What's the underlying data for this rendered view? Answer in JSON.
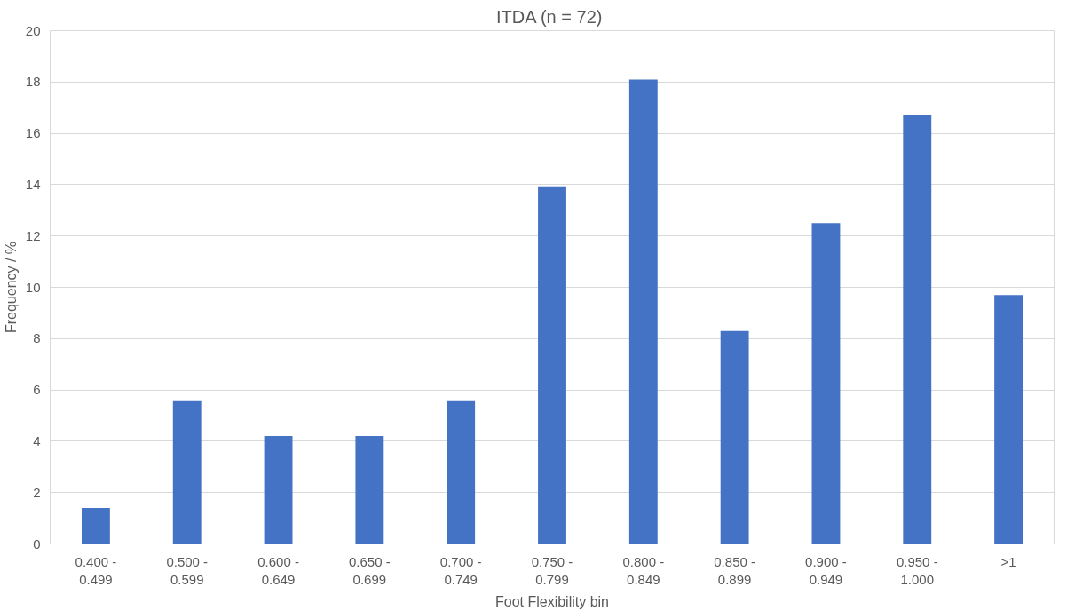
{
  "chart_data": {
    "type": "bar",
    "title": "ITDA  (n = 72)",
    "xlabel": "Foot Flexibility bin",
    "ylabel": "Frequency / %",
    "categories": [
      "0.400 -\n0.499",
      "0.500 -\n0.599",
      "0.600 -\n0.649",
      "0.650 -\n0.699",
      "0.700 -\n0.749",
      "0.750 -\n0.799",
      "0.800 -\n0.849",
      "0.850 -\n0.899",
      "0.900 -\n0.949",
      "0.950 -\n1.000",
      ">1"
    ],
    "values": [
      1.4,
      5.6,
      4.2,
      4.2,
      5.6,
      13.9,
      18.1,
      8.3,
      12.5,
      16.7,
      9.7
    ],
    "color": "#4472c4",
    "ylim": [
      0,
      20
    ],
    "yticks": [
      0,
      2,
      4,
      6,
      8,
      10,
      12,
      14,
      16,
      18,
      20
    ],
    "grid": "y"
  }
}
